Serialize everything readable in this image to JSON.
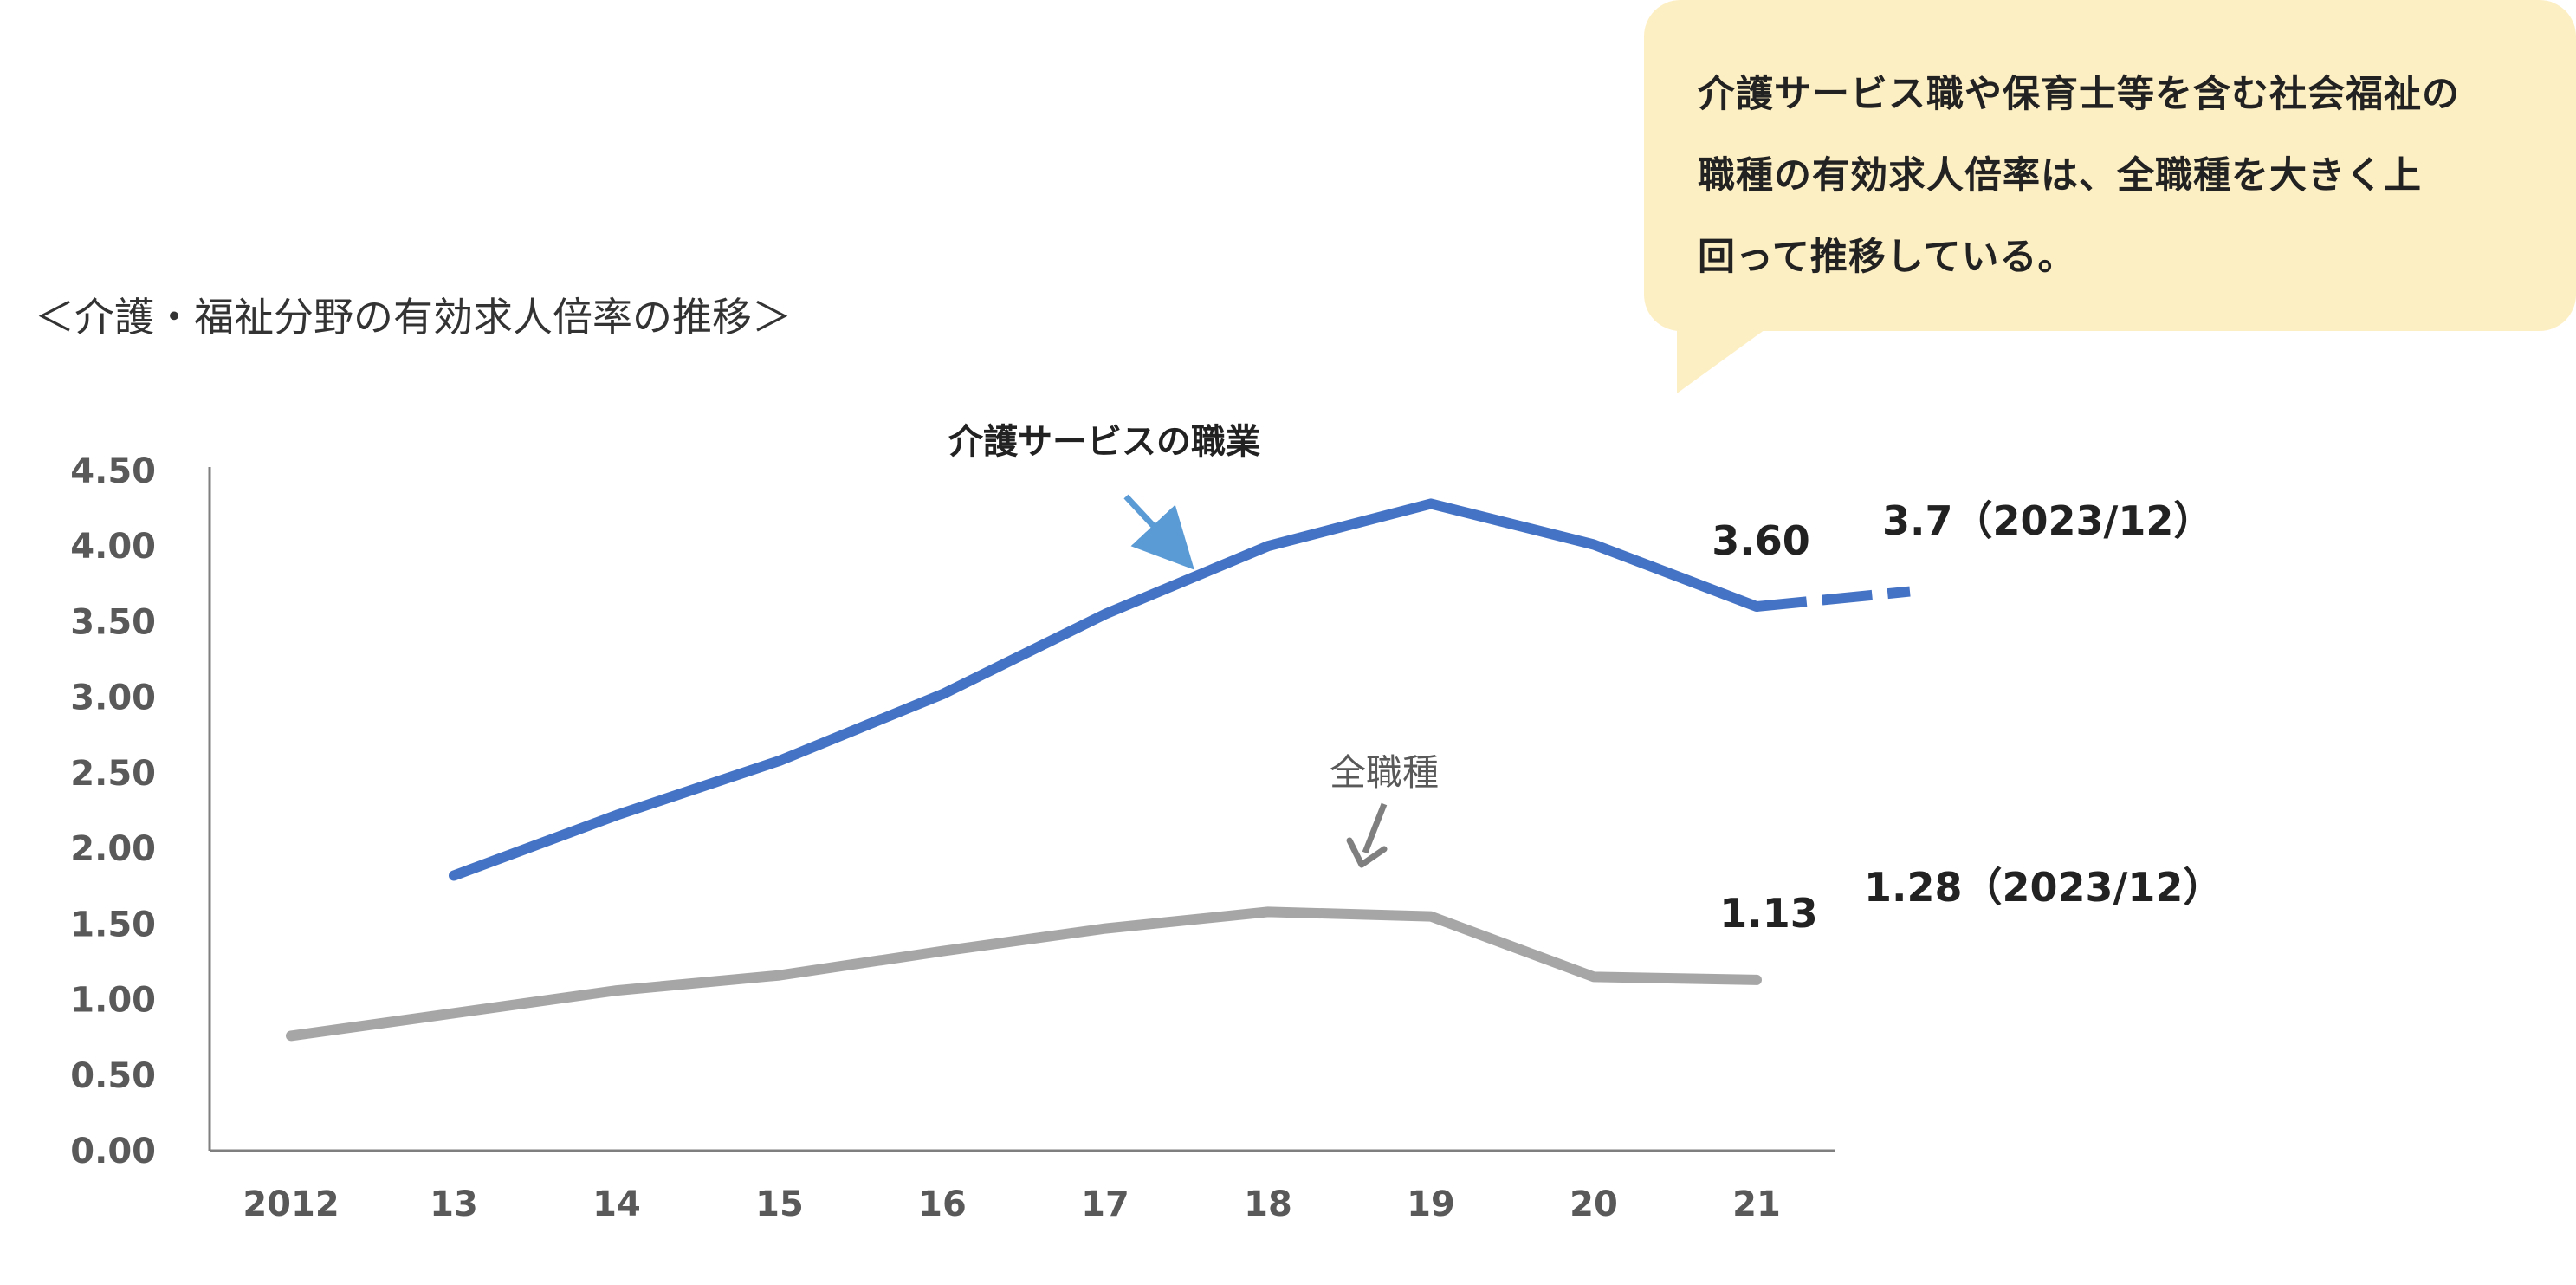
{
  "page_title": "＜介護・福祉分野の有効求人倍率の推移＞",
  "callout": {
    "lines": [
      "介護サービス職や保育士等を含む社会福祉の",
      "職種の有効求人倍率は、全職種を大きく上",
      "回って推移している。"
    ],
    "background_color": "#fdefc4"
  },
  "chart_data": {
    "type": "line",
    "categories": [
      "2012",
      "13",
      "14",
      "15",
      "16",
      "17",
      "18",
      "19",
      "20",
      "21"
    ],
    "ylim": [
      0,
      4.5
    ],
    "yticks": [
      "0.00",
      "0.50",
      "1.00",
      "1.50",
      "2.00",
      "2.50",
      "3.00",
      "3.50",
      "4.00",
      "4.50"
    ],
    "grid": false,
    "series": [
      {
        "name": "介護サービスの職業",
        "color": "#4472c4",
        "values": [
          null,
          1.82,
          2.22,
          2.58,
          3.02,
          3.55,
          4.0,
          4.28,
          4.01,
          3.6
        ],
        "end_label": "3.60",
        "projection": {
          "value": 3.7,
          "label": "3.7（2023/12）",
          "style": "dashed"
        }
      },
      {
        "name": "全職種",
        "color": "#a6a6a6",
        "values": [
          0.76,
          0.91,
          1.06,
          1.16,
          1.32,
          1.47,
          1.58,
          1.55,
          1.15,
          1.13
        ],
        "end_label": "1.13",
        "projection": {
          "value": 1.28,
          "label": "1.28（2023/12）"
        }
      }
    ]
  }
}
